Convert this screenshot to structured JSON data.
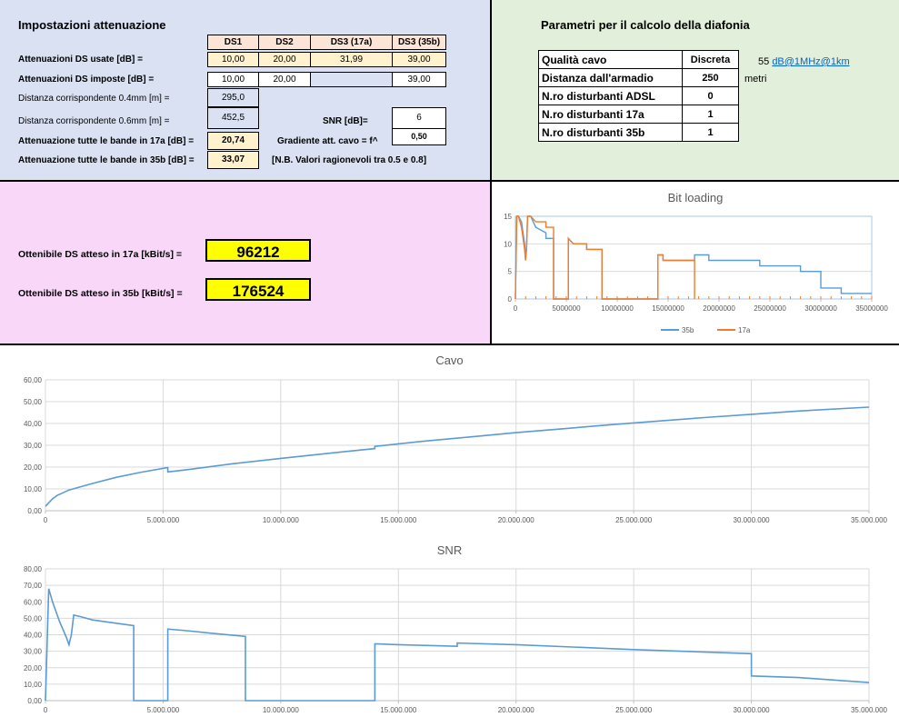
{
  "attenuation": {
    "title": "Impostazioni attenuazione",
    "headers": [
      "DS1",
      "DS2",
      "DS3 (17a)",
      "DS3 (35b)"
    ],
    "used_label": "Attenuazioni DS usate [dB] =",
    "used_values": [
      "10,00",
      "20,00",
      "31,99",
      "39,00"
    ],
    "imposed_label": "Attenuazioni DS imposte [dB] =",
    "imposed_values": [
      "10,00",
      "20,00",
      "",
      "39,00"
    ],
    "dist04_label": "Distanza corrispondente 0.4mm [m] =",
    "dist04_value": "295,0",
    "dist06_label": "Distanza corrispondente 0.6mm [m] =",
    "dist06_value": "452,5",
    "all17_label": "Attenuazione tutte le bande in 17a [dB] =",
    "all17_value": "20,74",
    "all35_label": "Attenuazione tutte le bande in 35b [dB] =",
    "all35_value": "33,07",
    "snr_label": "SNR [dB]=",
    "snr_value": "6",
    "gradient_label": "Gradiente att. cavo = f^",
    "gradient_value": "0,50",
    "note": "[N.B. Valori ragionevoli tra 0.5 e 0.8]"
  },
  "crosstalk": {
    "title": "Parametri per il calcolo della diafonia",
    "rows": [
      {
        "label": "Qualità cavo",
        "value": "Discreta"
      },
      {
        "label": "Distanza dall'armadio",
        "value": "250"
      },
      {
        "label": "N.ro disturbanti ADSL",
        "value": "0"
      },
      {
        "label": "N.ro disturbanti 17a",
        "value": "1"
      },
      {
        "label": "N.ro disturbanti 35b",
        "value": "1"
      }
    ],
    "quality_num": "55",
    "quality_unit": "dB@1MHz@1km",
    "distance_unit": "metri"
  },
  "results": {
    "ds17_label": "Ottenibile DS atteso in 17a [kBit/s] =",
    "ds17_value": "96212",
    "ds35_label": "Ottenibile DS atteso in 35b [kBit/s] =",
    "ds35_value": "176524"
  },
  "colors": {
    "series_35b": "#5b9bd5",
    "series_17a": "#ed7d31",
    "grid": "#d9d9d9",
    "axis_text": "#595959"
  },
  "chart_data": [
    {
      "type": "line",
      "title": "Bit loading",
      "ylim": [
        0,
        15
      ],
      "xlim": [
        0,
        35000000
      ],
      "y_ticks": [
        "0",
        "5",
        "10",
        "15"
      ],
      "x_ticks": [
        "0",
        "5000000",
        "10000000",
        "15000000",
        "20000000",
        "25000000",
        "30000000",
        "35000000"
      ],
      "legend": "bottom",
      "series": [
        {
          "name": "35b",
          "points": [
            [
              0,
              0
            ],
            [
              138000,
              15
            ],
            [
              300000,
              15
            ],
            [
              600000,
              14
            ],
            [
              900000,
              10
            ],
            [
              1000000,
              7
            ],
            [
              1100000,
              10
            ],
            [
              1200000,
              15
            ],
            [
              1500000,
              15
            ],
            [
              2000000,
              13
            ],
            [
              3000000,
              12
            ],
            [
              3000000,
              11
            ],
            [
              3500000,
              11
            ],
            [
              3750000,
              11
            ],
            [
              3750000,
              0
            ],
            [
              5200000,
              0
            ],
            [
              5200000,
              11
            ],
            [
              5700000,
              10
            ],
            [
              7000000,
              10
            ],
            [
              7000000,
              9
            ],
            [
              8500000,
              9
            ],
            [
              8500000,
              0
            ],
            [
              14000000,
              0
            ],
            [
              14000000,
              8
            ],
            [
              14500000,
              8
            ],
            [
              14500000,
              7
            ],
            [
              17600000,
              7
            ],
            [
              17600000,
              8
            ],
            [
              19000000,
              8
            ],
            [
              19000000,
              7
            ],
            [
              24000000,
              7
            ],
            [
              24000000,
              6
            ],
            [
              28000000,
              6
            ],
            [
              28000000,
              5
            ],
            [
              30000000,
              5
            ],
            [
              30000000,
              2
            ],
            [
              32000000,
              2
            ],
            [
              32000000,
              1
            ],
            [
              35000000,
              1
            ]
          ]
        },
        {
          "name": "17a",
          "points": [
            [
              0,
              0
            ],
            [
              138000,
              15
            ],
            [
              300000,
              15
            ],
            [
              600000,
              13
            ],
            [
              900000,
              9
            ],
            [
              1000000,
              7
            ],
            [
              1100000,
              9
            ],
            [
              1200000,
              15
            ],
            [
              1500000,
              15
            ],
            [
              2000000,
              14
            ],
            [
              3000000,
              14
            ],
            [
              3000000,
              13
            ],
            [
              3750000,
              13
            ],
            [
              3750000,
              0
            ],
            [
              5200000,
              0
            ],
            [
              5200000,
              11
            ],
            [
              5700000,
              10
            ],
            [
              7000000,
              10
            ],
            [
              7000000,
              9
            ],
            [
              8500000,
              9
            ],
            [
              8500000,
              0
            ],
            [
              14000000,
              0
            ],
            [
              14000000,
              8
            ],
            [
              14500000,
              8
            ],
            [
              14500000,
              7
            ],
            [
              17600000,
              7
            ],
            [
              17600000,
              0
            ]
          ]
        }
      ]
    },
    {
      "type": "line",
      "title": "Cavo",
      "ylim": [
        0,
        60
      ],
      "xlim": [
        0,
        35000000
      ],
      "y_ticks": [
        "0,00",
        "10,00",
        "20,00",
        "30,00",
        "40,00",
        "50,00",
        "60,00"
      ],
      "x_ticks": [
        "0",
        "5.000.000",
        "10.000.000",
        "15.000.000",
        "20.000.000",
        "25.000.000",
        "30.000.000",
        "35.000.000"
      ],
      "series": [
        {
          "name": "",
          "points": [
            [
              0,
              2
            ],
            [
              100000,
              3.2
            ],
            [
              300000,
              5.5
            ],
            [
              500000,
              7
            ],
            [
              1000000,
              9.5
            ],
            [
              2000000,
              12.5
            ],
            [
              3000000,
              15.3
            ],
            [
              4000000,
              17.5
            ],
            [
              5200000,
              19.8
            ],
            [
              5200000,
              17.8
            ],
            [
              6000000,
              18.8
            ],
            [
              8000000,
              21.6
            ],
            [
              10000000,
              24
            ],
            [
              12000000,
              26.3
            ],
            [
              14000000,
              28.5
            ],
            [
              14000000,
              29.5
            ],
            [
              16000000,
              31.8
            ],
            [
              18000000,
              33.8
            ],
            [
              20000000,
              35.8
            ],
            [
              22000000,
              37.6
            ],
            [
              24000000,
              39.4
            ],
            [
              26000000,
              41.1
            ],
            [
              28000000,
              42.7
            ],
            [
              30000000,
              44.2
            ],
            [
              32000000,
              45.7
            ],
            [
              35000000,
              47.5
            ]
          ]
        }
      ]
    },
    {
      "type": "line",
      "title": "SNR",
      "ylim": [
        0,
        80
      ],
      "xlim": [
        0,
        35000000
      ],
      "y_ticks": [
        "0,00",
        "10,00",
        "20,00",
        "30,00",
        "40,00",
        "50,00",
        "60,00",
        "70,00",
        "80,00"
      ],
      "x_ticks": [
        "0",
        "5.000.000",
        "10.000.000",
        "15.000.000",
        "20.000.000",
        "25.000.000",
        "30.000.000",
        "35.000.000"
      ],
      "series": [
        {
          "name": "",
          "points": [
            [
              0,
              0
            ],
            [
              138000,
              68
            ],
            [
              300000,
              60
            ],
            [
              600000,
              48
            ],
            [
              900000,
              38
            ],
            [
              1000000,
              34
            ],
            [
              1100000,
              40
            ],
            [
              1200000,
              52
            ],
            [
              1500000,
              51
            ],
            [
              2000000,
              49
            ],
            [
              3000000,
              47
            ],
            [
              3750000,
              45.5
            ],
            [
              3750000,
              0
            ],
            [
              5200000,
              0
            ],
            [
              5200000,
              43.5
            ],
            [
              6000000,
              42.5
            ],
            [
              7000000,
              41
            ],
            [
              8500000,
              39
            ],
            [
              8500000,
              0
            ],
            [
              14000000,
              0
            ],
            [
              14000000,
              34.5
            ],
            [
              15000000,
              34
            ],
            [
              17500000,
              33
            ],
            [
              17500000,
              35
            ],
            [
              20000000,
              34
            ],
            [
              25000000,
              31
            ],
            [
              30000000,
              28.5
            ],
            [
              30000000,
              15
            ],
            [
              32000000,
              14
            ],
            [
              35000000,
              11
            ]
          ]
        }
      ]
    }
  ]
}
